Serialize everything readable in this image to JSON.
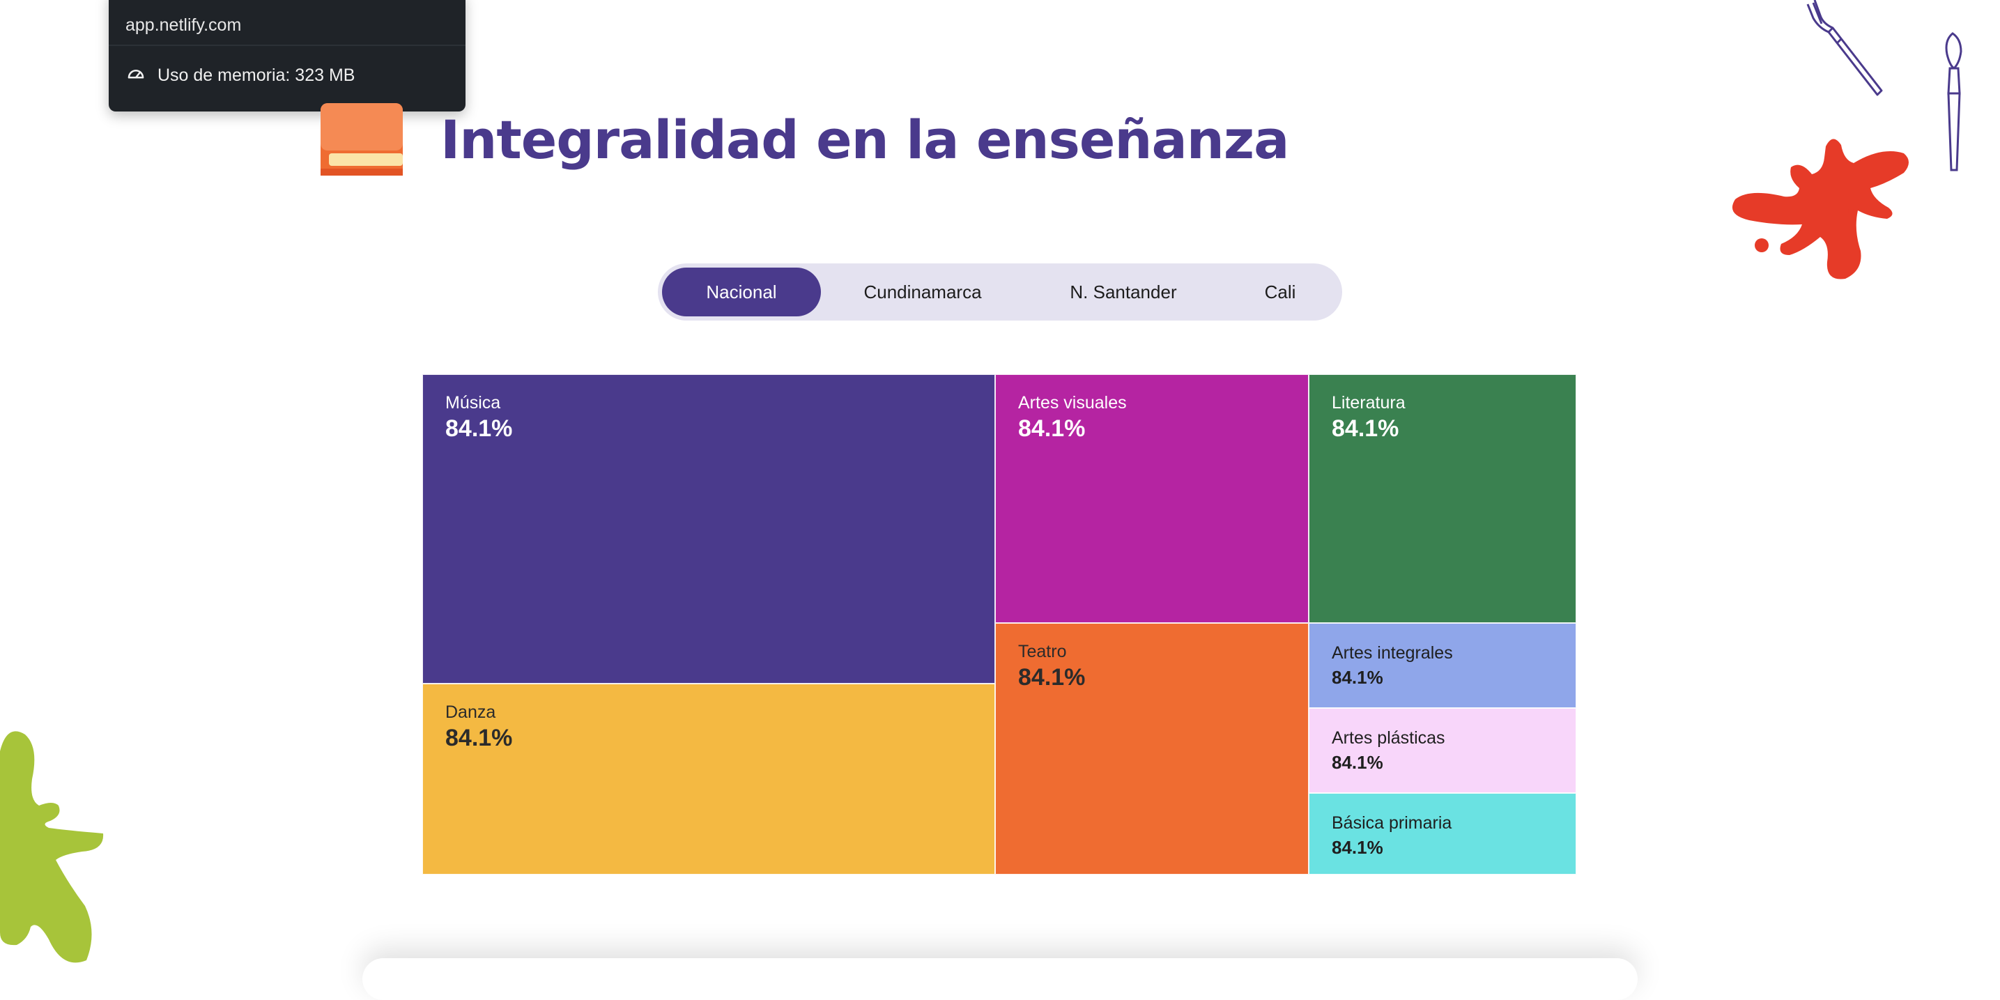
{
  "tooltip": {
    "url": "app.netlify.com",
    "memory_label": "Uso de memoria: 323 MB"
  },
  "header": {
    "title": "Integralidad en la enseñanza"
  },
  "tabs": [
    {
      "label": "Nacional",
      "active": true
    },
    {
      "label": "Cundinamarca",
      "active": false
    },
    {
      "label": "N. Santander",
      "active": false
    },
    {
      "label": "Cali",
      "active": false
    }
  ],
  "treemap": {
    "cells": [
      {
        "label": "Música",
        "value": "84.1%",
        "color": "#4a3a8c",
        "text_color": "#ffffff"
      },
      {
        "label": "Danza",
        "value": "84.1%",
        "color": "#f4b942",
        "text_color": "#2b2b2b"
      },
      {
        "label": "Artes visuales",
        "value": "84.1%",
        "color": "#b524a2",
        "text_color": "#ffffff"
      },
      {
        "label": "Teatro",
        "value": "84.1%",
        "color": "#ef6c31",
        "text_color": "#2b2b2b"
      },
      {
        "label": "Literatura",
        "value": "84.1%",
        "color": "#3a8150",
        "text_color": "#ffffff"
      },
      {
        "label": "Artes integrales",
        "value": "84.1%",
        "color": "#8fa6ea",
        "text_color": "#1f1f1f"
      },
      {
        "label": "Artes plásticas",
        "value": "84.1%",
        "color": "#f8d6fa",
        "text_color": "#1f1f1f"
      },
      {
        "label": "Básica primaria",
        "value": "84.1%",
        "color": "#6ae2e2",
        "text_color": "#1f1f1f"
      }
    ]
  },
  "colors": {
    "primary": "#4a3a8c",
    "red_splash": "#e63b28",
    "green_splash": "#a7c43a"
  },
  "icons": [
    "book-icon",
    "gauge-icon",
    "brush-icon",
    "paintbrush-icon",
    "paint-splash-icon"
  ]
}
